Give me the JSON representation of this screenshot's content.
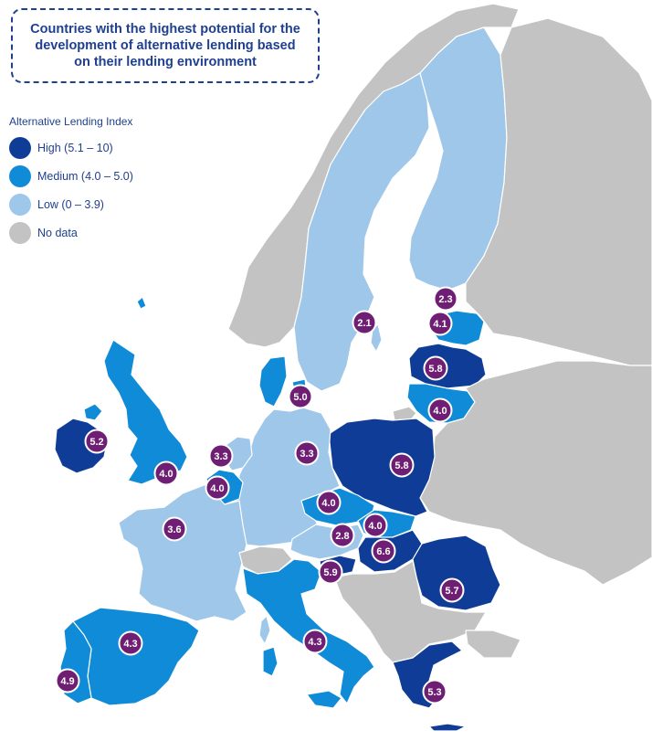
{
  "title": "Countries with the highest potential for the development of alternative lending based on their lending environment",
  "legend": {
    "title": "Alternative Lending Index",
    "items": [
      {
        "label": "High (5.1 – 10)",
        "color": "#0e3c96",
        "icon": "dark-blue-circle"
      },
      {
        "label": "Medium (4.0 – 5.0)",
        "color": "#108bd7",
        "icon": "medium-blue-circle"
      },
      {
        "label": "Low (0 – 3.9)",
        "color": "#9ec7ea",
        "icon": "light-blue-circle"
      },
      {
        "label": "No data",
        "color": "#c3c3c3",
        "icon": "gray-circle"
      }
    ]
  },
  "colors": {
    "title_text": "#1f3f8f",
    "score_badge": "#6f1f73",
    "score_badge_border": "#ffffff",
    "sea": "#ffffff",
    "border": "#ffffff"
  },
  "countries": [
    {
      "id": "ireland",
      "score": "5.2",
      "category": "high"
    },
    {
      "id": "united-kingdom",
      "score": "4.0",
      "category": "medium"
    },
    {
      "id": "netherlands",
      "score": "3.3",
      "category": "low"
    },
    {
      "id": "belgium",
      "score": "4.0",
      "category": "medium"
    },
    {
      "id": "france",
      "score": "3.6",
      "category": "low"
    },
    {
      "id": "spain",
      "score": "4.3",
      "category": "medium"
    },
    {
      "id": "portugal",
      "score": "4.9",
      "category": "medium"
    },
    {
      "id": "italy",
      "score": "4.3",
      "category": "medium"
    },
    {
      "id": "germany",
      "score": "3.3",
      "category": "low"
    },
    {
      "id": "denmark",
      "score": "5.0",
      "category": "medium"
    },
    {
      "id": "sweden",
      "score": "2.1",
      "category": "low"
    },
    {
      "id": "finland",
      "score": "2.3",
      "category": "low"
    },
    {
      "id": "estonia",
      "score": "4.1",
      "category": "medium"
    },
    {
      "id": "latvia",
      "score": "5.8",
      "category": "high"
    },
    {
      "id": "lithuania",
      "score": "4.0",
      "category": "medium"
    },
    {
      "id": "poland",
      "score": "5.8",
      "category": "high"
    },
    {
      "id": "czech-republic",
      "score": "4.0",
      "category": "medium"
    },
    {
      "id": "slovakia",
      "score": "4.0",
      "category": "medium"
    },
    {
      "id": "austria",
      "score": "2.8",
      "category": "low"
    },
    {
      "id": "hungary",
      "score": "6.6",
      "category": "high"
    },
    {
      "id": "slovenia",
      "score": "5.9",
      "category": "high"
    },
    {
      "id": "romania",
      "score": "5.7",
      "category": "high"
    },
    {
      "id": "greece",
      "score": "5.3",
      "category": "high"
    }
  ],
  "footnote": ""
}
